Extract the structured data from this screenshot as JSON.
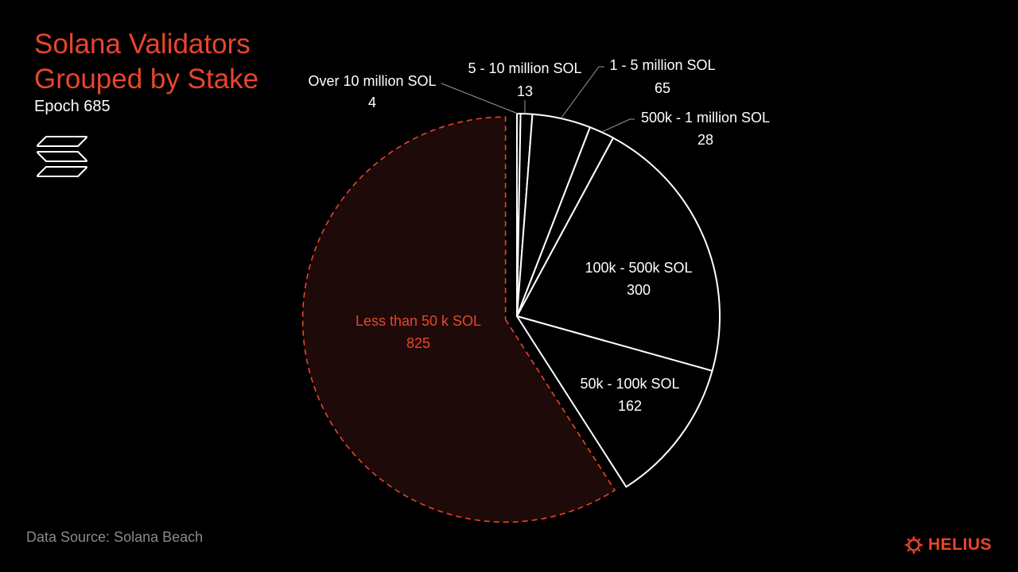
{
  "header": {
    "title_line1": "Solana Validators",
    "title_line2": "Grouped by Stake",
    "subtitle": "Epoch 685"
  },
  "footer": {
    "source": "Data Source: Solana Beach",
    "brand": "HELIUS"
  },
  "icons": {
    "solana": "solana-logo-icon",
    "helius": "helius-logo-icon"
  },
  "colors": {
    "accent": "#e8452c",
    "highlight_fill": "#1e0a08",
    "slice_stroke": "#ffffff",
    "background": "#000000"
  },
  "chart_data": {
    "type": "pie",
    "title": "Solana Validators Grouped by Stake",
    "subtitle": "Epoch 685",
    "start": "12 o'clock, clockwise",
    "categories": [
      "Over 10 million SOL",
      "5 - 10 million SOL",
      "1 - 5 million SOL",
      "500k - 1 million SOL",
      "100k - 500k SOL",
      "50k - 100k SOL",
      "Less than 50 k SOL"
    ],
    "values": [
      4,
      13,
      65,
      28,
      300,
      162,
      825
    ],
    "highlighted": "Less than 50 k SOL",
    "exploded": [
      "Less than 50 k SOL"
    ]
  }
}
